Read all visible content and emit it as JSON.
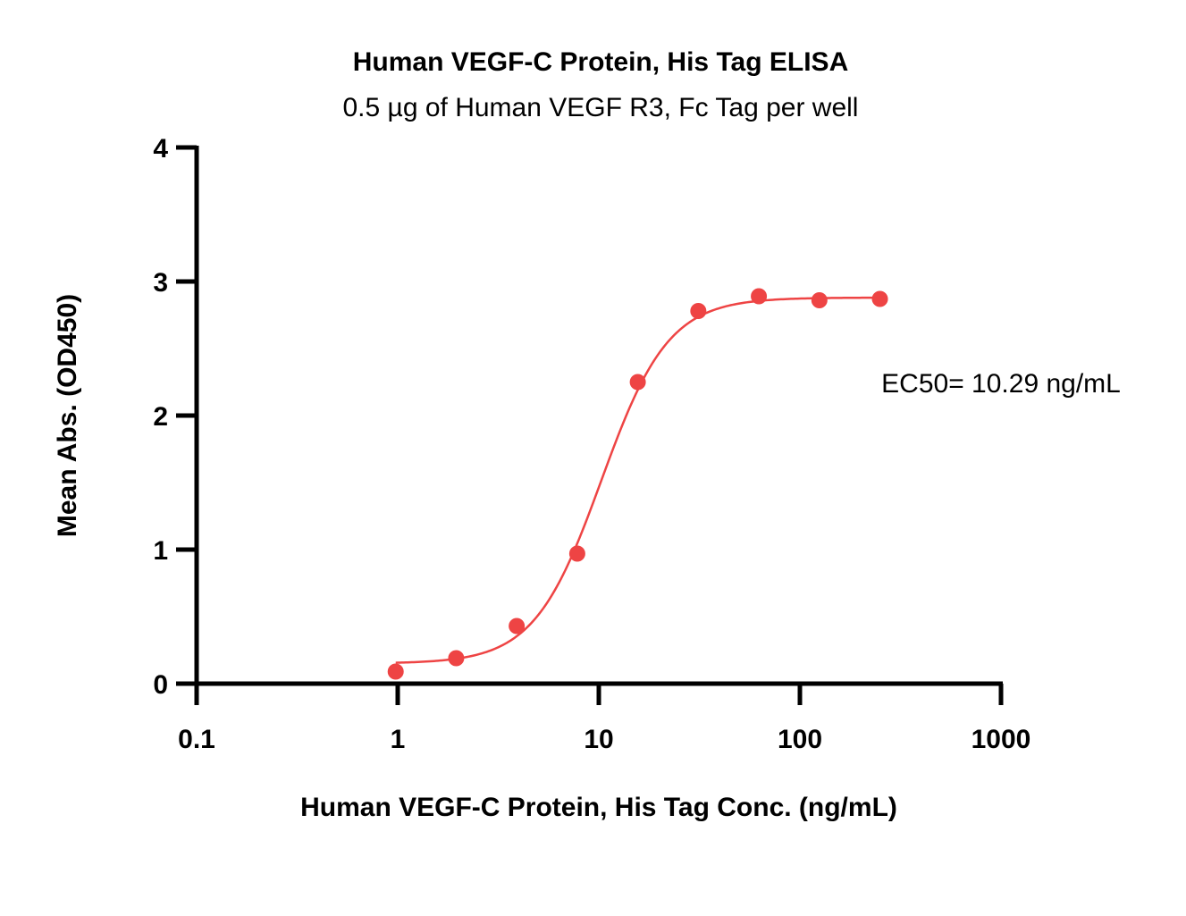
{
  "chart_data": {
    "type": "scatter",
    "title": "Human VEGF-C Protein, His Tag ELISA",
    "subtitle": "0.5 µg of Human VEGF R3, Fc Tag per well",
    "xlabel": "Human VEGF-C Protein, His Tag Conc. (ng/mL)",
    "ylabel": "Mean Abs. (OD450)",
    "x_scale": "log",
    "xlim": [
      0.1,
      1000
    ],
    "ylim": [
      0,
      4
    ],
    "x_ticks": [
      0.1,
      1,
      10,
      100,
      1000
    ],
    "x_tick_labels": [
      "0.1",
      "1",
      "10",
      "100",
      "1000"
    ],
    "y_ticks": [
      0,
      1,
      2,
      3,
      4
    ],
    "y_tick_labels": [
      "0",
      "1",
      "2",
      "3",
      "4"
    ],
    "grid": false,
    "series": [
      {
        "color": "#EE4444",
        "points": [
          {
            "x": 0.977,
            "y": 0.09
          },
          {
            "x": 1.953,
            "y": 0.19
          },
          {
            "x": 3.906,
            "y": 0.43
          },
          {
            "x": 7.813,
            "y": 0.97
          },
          {
            "x": 15.625,
            "y": 2.25
          },
          {
            "x": 31.25,
            "y": 2.78
          },
          {
            "x": 62.5,
            "y": 2.89
          },
          {
            "x": 125,
            "y": 2.86
          },
          {
            "x": 250,
            "y": 2.87
          }
        ],
        "fit": {
          "model": "4PL",
          "bottom": 0.15,
          "top": 2.88,
          "ec50": 10.29,
          "hill": 2.6,
          "x_range": [
            0.977,
            250
          ]
        }
      }
    ],
    "annotations": [
      {
        "text": "EC50= 10.29 ng/mL"
      }
    ]
  }
}
